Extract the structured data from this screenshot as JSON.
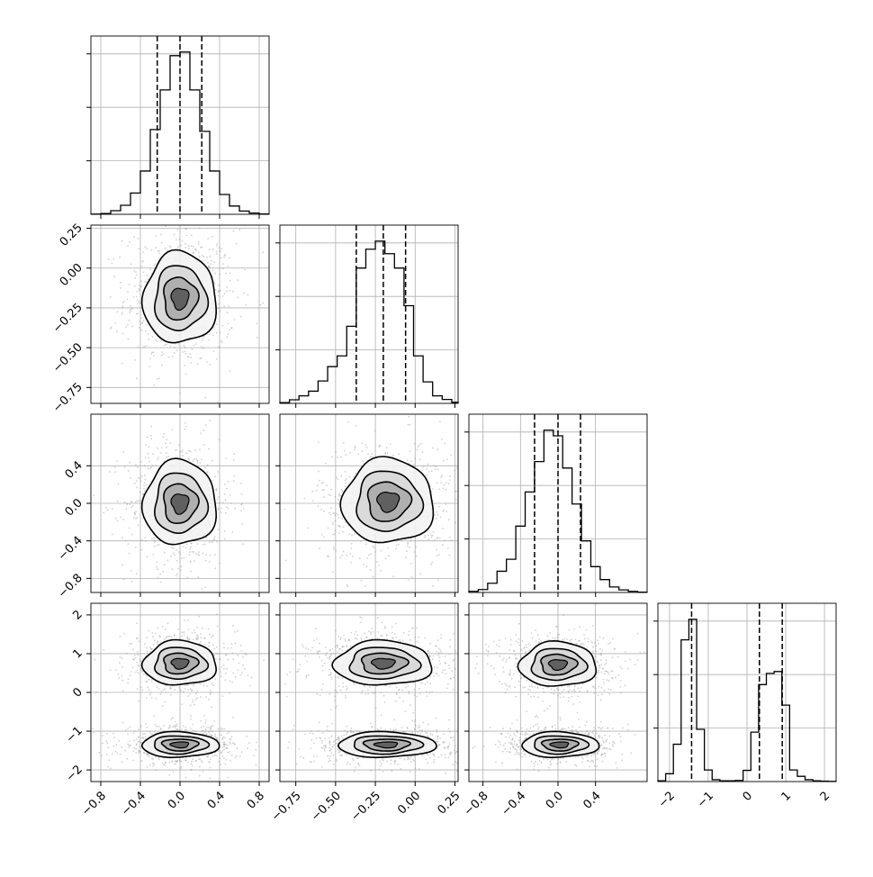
{
  "chart_data": {
    "type": "corner",
    "n_params": 4,
    "grid": true,
    "colors": {
      "ink": "#000000",
      "grid": "#b0b0b0",
      "scatter": "#9a9a9a"
    },
    "params": [
      {
        "lim": [
          -0.9,
          0.9
        ],
        "ticks": [
          -0.8,
          -0.4,
          0.0,
          0.4,
          0.8
        ],
        "tick_labels": [
          "−0.8",
          "−0.4",
          "0.0",
          "0.4",
          "0.8"
        ],
        "hist_edges": [
          -0.9,
          -0.8,
          -0.7,
          -0.6,
          -0.5,
          -0.4,
          -0.3,
          -0.2,
          -0.1,
          0.0,
          0.1,
          0.2,
          0.3,
          0.4,
          0.5,
          0.6,
          0.7,
          0.8,
          0.9
        ],
        "hist_counts": [
          1,
          4,
          20,
          50,
          118,
          240,
          470,
          690,
          880,
          900,
          690,
          460,
          240,
          110,
          46,
          18,
          7,
          2
        ],
        "quantiles": [
          -0.23,
          0.0,
          0.22
        ]
      },
      {
        "lim": [
          -0.85,
          0.27
        ],
        "ticks": [
          -0.75,
          -0.5,
          -0.25,
          0.0,
          0.25
        ],
        "tick_labels": [
          "−0.75",
          "−0.50",
          "−0.25",
          "0.00",
          "0.25"
        ],
        "hist_edges": [
          -0.85,
          -0.79,
          -0.73,
          -0.67,
          -0.61,
          -0.55,
          -0.49,
          -0.43,
          -0.37,
          -0.31,
          -0.25,
          -0.19,
          -0.13,
          -0.07,
          -0.01,
          0.05,
          0.11,
          0.17,
          0.23,
          0.27
        ],
        "hist_counts": [
          4,
          20,
          42,
          68,
          125,
          205,
          265,
          430,
          755,
          860,
          905,
          835,
          755,
          545,
          265,
          120,
          42,
          22,
          6
        ],
        "quantiles": [
          -0.37,
          -0.2,
          -0.06
        ]
      },
      {
        "lim": [
          -0.95,
          0.95
        ],
        "ticks": [
          -0.8,
          -0.4,
          0.0,
          0.4
        ],
        "tick_labels": [
          "−0.8",
          "−0.4",
          "0.0",
          "0.4"
        ],
        "hist_edges": [
          -0.95,
          -0.85,
          -0.75,
          -0.65,
          -0.55,
          -0.45,
          -0.35,
          -0.25,
          -0.15,
          -0.05,
          0.05,
          0.15,
          0.25,
          0.35,
          0.45,
          0.55,
          0.65,
          0.75,
          0.85,
          0.95
        ],
        "hist_counts": [
          6,
          16,
          50,
          115,
          180,
          360,
          545,
          710,
          880,
          850,
          675,
          480,
          280,
          140,
          70,
          30,
          14,
          6,
          2
        ],
        "quantiles": [
          -0.25,
          0.0,
          0.24
        ]
      },
      {
        "lim": [
          -2.3,
          2.3
        ],
        "ticks": [
          -2,
          -1,
          0,
          1,
          2
        ],
        "tick_labels": [
          "−2",
          "−1",
          "0",
          "1",
          "2"
        ],
        "hist_edges": [
          -2.3,
          -2.1,
          -1.9,
          -1.7,
          -1.5,
          -1.3,
          -1.1,
          -0.9,
          -0.7,
          -0.5,
          -0.3,
          -0.1,
          0.1,
          0.3,
          0.5,
          0.7,
          0.9,
          1.1,
          1.3,
          1.5,
          1.7,
          1.9,
          2.1,
          2.3
        ],
        "hist_counts": [
          4,
          42,
          200,
          760,
          870,
          280,
          62,
          10,
          4,
          4,
          6,
          60,
          265,
          520,
          580,
          590,
          410,
          62,
          28,
          10,
          4,
          2,
          1
        ],
        "quantiles": [
          -1.43,
          0.32,
          0.91
        ]
      }
    ],
    "pairs": [
      {
        "x": 0,
        "y": 1,
        "modes": [
          {
            "cx": 0.0,
            "cy": -0.19,
            "sx": 0.18,
            "sy": 0.14
          }
        ]
      },
      {
        "x": 0,
        "y": 2,
        "modes": [
          {
            "cx": 0.0,
            "cy": 0.0,
            "sx": 0.18,
            "sy": 0.22
          }
        ]
      },
      {
        "x": 1,
        "y": 2,
        "modes": [
          {
            "cx": -0.17,
            "cy": 0.02,
            "sx": 0.14,
            "sy": 0.22
          }
        ]
      },
      {
        "x": 0,
        "y": 3,
        "modes": [
          {
            "cx": 0.0,
            "cy": 0.75,
            "sx": 0.18,
            "sy": 0.28
          },
          {
            "cx": 0.0,
            "cy": -1.35,
            "sx": 0.19,
            "sy": 0.16
          }
        ]
      },
      {
        "x": 1,
        "y": 3,
        "modes": [
          {
            "cx": -0.2,
            "cy": 0.75,
            "sx": 0.15,
            "sy": 0.28
          },
          {
            "cx": -0.18,
            "cy": -1.35,
            "sx": 0.15,
            "sy": 0.16
          }
        ]
      },
      {
        "x": 2,
        "y": 3,
        "modes": [
          {
            "cx": 0.0,
            "cy": 0.72,
            "sx": 0.2,
            "sy": 0.28
          },
          {
            "cx": 0.02,
            "cy": -1.35,
            "sx": 0.2,
            "sy": 0.16
          }
        ]
      }
    ]
  }
}
